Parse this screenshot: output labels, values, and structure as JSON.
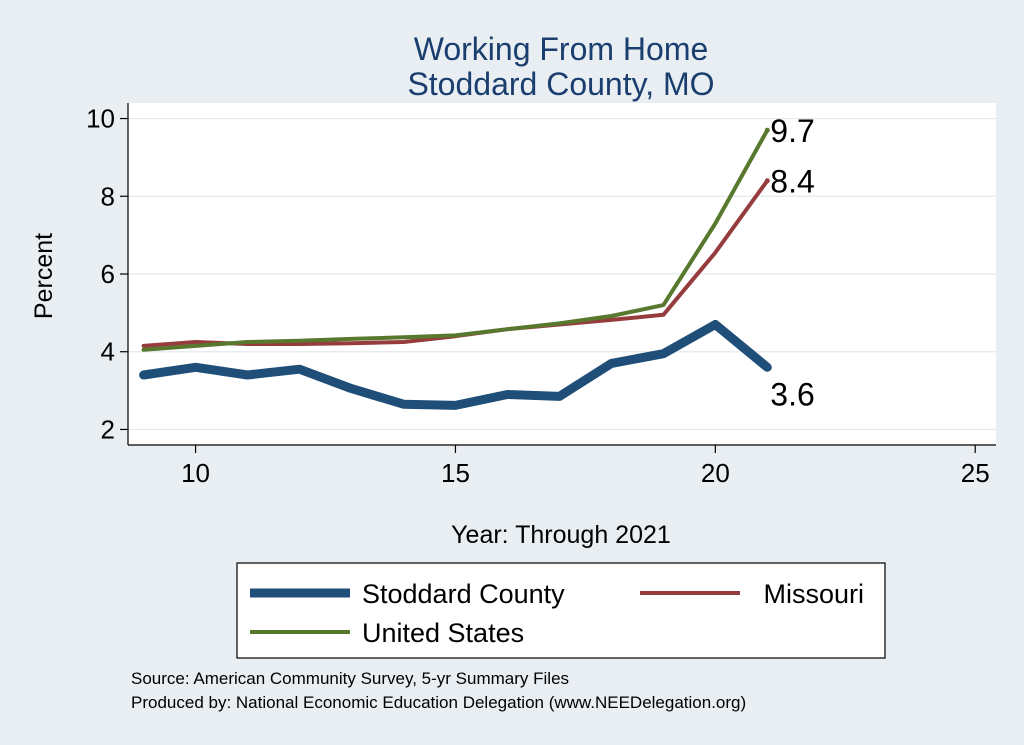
{
  "chart_data": {
    "type": "line",
    "title": [
      "Working From Home",
      "Stoddard County, MO"
    ],
    "xlabel": "Year: Through 2021",
    "ylabel": "Percent",
    "xlim": [
      8.7,
      25.4
    ],
    "ylim": [
      1.6,
      10.4
    ],
    "xticks": [
      10,
      15,
      20,
      25
    ],
    "yticks": [
      2,
      4,
      6,
      8,
      10
    ],
    "grid": true,
    "legend_position": "bottom",
    "series": [
      {
        "name": "Stoddard County",
        "color": "#1f4e79",
        "width": 9,
        "x": [
          9,
          10,
          11,
          12,
          13,
          14,
          15,
          16,
          17,
          18,
          19,
          20,
          21
        ],
        "values": [
          3.4,
          3.6,
          3.4,
          3.55,
          3.05,
          2.65,
          2.62,
          2.9,
          2.85,
          3.7,
          3.95,
          4.7,
          3.6
        ],
        "end_label": "3.6"
      },
      {
        "name": "Missouri",
        "color": "#963c3c",
        "width": 4,
        "x": [
          9,
          10,
          11,
          12,
          13,
          14,
          15,
          16,
          17,
          18,
          19,
          20,
          21
        ],
        "values": [
          4.15,
          4.25,
          4.2,
          4.2,
          4.22,
          4.25,
          4.4,
          4.58,
          4.7,
          4.82,
          4.95,
          6.55,
          8.4
        ],
        "end_label": "8.4"
      },
      {
        "name": "United States",
        "color": "#58782e",
        "width": 4,
        "x": [
          9,
          10,
          11,
          12,
          13,
          14,
          15,
          16,
          17,
          18,
          19,
          20,
          21
        ],
        "values": [
          4.05,
          4.15,
          4.25,
          4.28,
          4.33,
          4.37,
          4.42,
          4.58,
          4.73,
          4.92,
          5.2,
          7.3,
          9.7
        ],
        "end_label": "9.7"
      }
    ],
    "notes": [
      "Source: American Community Survey, 5-yr Summary Files",
      "Produced by: National Economic Education Delegation (www.NEEDelegation.org)"
    ]
  }
}
